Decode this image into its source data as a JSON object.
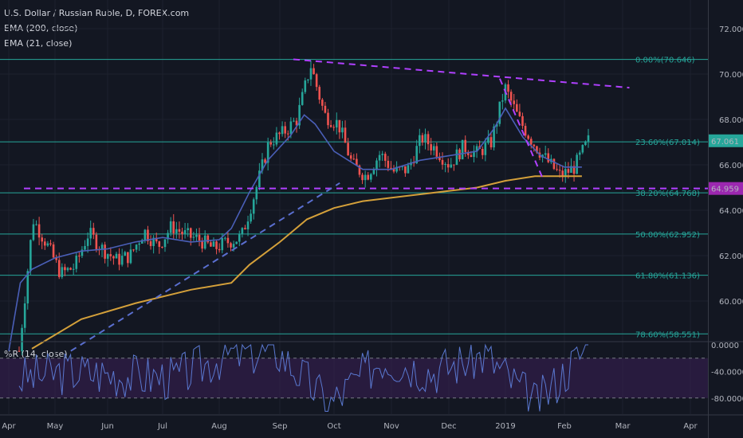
{
  "header": {
    "symbol_title": "U.S. Dollar / Russian Ruble, D, FOREX.com",
    "ema200_label": "EMA (200, close)",
    "ema21_label": "EMA (21, close)",
    "wr_label": "%R (14, close)"
  },
  "colors": {
    "background": "#131722",
    "grid": "#1e222d",
    "candle_up": "#26a69a",
    "candle_down": "#ef5350",
    "ema200": "#d4a03a",
    "ema21": "#4a5fb8",
    "fib": "#26a69a",
    "trend_magenta": "#b040ff",
    "trend_blue": "#5a6fd0",
    "wr_line": "#5a78d0",
    "wr_band": "#3b1f55",
    "last_price_bg": "#26a69a",
    "support_label_bg": "#9c27b0"
  },
  "chart_data": [
    {
      "type": "candlestick",
      "name": "price",
      "x_ticks": [
        "Apr",
        "May",
        "Jun",
        "Jul",
        "Aug",
        "Sep",
        "Oct",
        "Nov",
        "Dec",
        "2019",
        "Feb",
        "Mar",
        "Apr"
      ],
      "y_ticks": [
        "72.000",
        "70.000",
        "68.000",
        "66.000",
        "64.000",
        "62.000",
        "60.000"
      ],
      "ylim": [
        58,
        73.3
      ],
      "last_price": "67.061",
      "support_level_label": "64.959",
      "fib_levels": [
        {
          "label": "0.00%(70.646)",
          "value": 70.646
        },
        {
          "label": "23.60%(67.014)",
          "value": 67.014
        },
        {
          "label": "38.20%(64.768)",
          "value": 64.768
        },
        {
          "label": "50.00%(62.952)",
          "value": 62.952
        },
        {
          "label": "61.80%(61.136)",
          "value": 61.136
        },
        {
          "label": "78.60%(58.551)",
          "value": 58.551
        }
      ],
      "support_level": 64.959,
      "trend_lines": [
        {
          "style": "dashed",
          "color": "magenta",
          "from": [
            "Sep",
            70.65
          ],
          "to": [
            "Mar",
            69.4
          ]
        },
        {
          "style": "dashed",
          "color": "magenta",
          "from": [
            "Dec",
            69.8
          ],
          "to": [
            "Feb",
            65.3
          ]
        },
        {
          "style": "dashed",
          "color": "blue",
          "from": [
            "May",
            57.8
          ],
          "to": [
            "Oct",
            65.2
          ]
        }
      ],
      "close_path": [
        [
          "Apr",
          57.8
        ],
        [
          "Apr",
          63.6
        ],
        [
          "Apr",
          62.5
        ],
        [
          "Apr",
          61.2
        ],
        [
          "May",
          61.5
        ],
        [
          "May",
          63.0
        ],
        [
          "May",
          62.3
        ],
        [
          "May",
          61.8
        ],
        [
          "Jun",
          62.0
        ],
        [
          "Jun",
          63.1
        ],
        [
          "Jun",
          62.4
        ],
        [
          "Jun",
          63.3
        ],
        [
          "Jul",
          62.9
        ],
        [
          "Jul",
          62.7
        ],
        [
          "Jul",
          62.3
        ],
        [
          "Jul",
          62.6
        ],
        [
          "Aug",
          62.8
        ],
        [
          "Aug",
          64.8
        ],
        [
          "Aug",
          67.0
        ],
        [
          "Aug",
          67.4
        ],
        [
          "Sep",
          68.0
        ],
        [
          "Sep",
          70.4
        ],
        [
          "Sep",
          68.2
        ],
        [
          "Sep",
          67.8
        ],
        [
          "Oct",
          66.0
        ],
        [
          "Oct",
          65.5
        ],
        [
          "Oct",
          66.5
        ],
        [
          "Oct",
          65.7
        ],
        [
          "Nov",
          65.8
        ],
        [
          "Nov",
          67.2
        ],
        [
          "Nov",
          66.7
        ],
        [
          "Nov",
          66.0
        ],
        [
          "Dec",
          66.8
        ],
        [
          "Dec",
          66.5
        ],
        [
          "Dec",
          67.0
        ],
        [
          "Dec",
          69.4
        ],
        [
          "2019",
          68.0
        ],
        [
          "2019",
          67.0
        ],
        [
          "2019",
          66.2
        ],
        [
          "Feb",
          65.5
        ],
        [
          "Feb",
          65.9
        ],
        [
          "Feb",
          67.06
        ]
      ],
      "ema21_path": [
        [
          0.0,
          57.8
        ],
        [
          0.25,
          60.8
        ],
        [
          0.5,
          61.4
        ],
        [
          1.0,
          61.9
        ],
        [
          1.5,
          62.2
        ],
        [
          2.0,
          62.3
        ],
        [
          2.5,
          62.6
        ],
        [
          3.0,
          62.8
        ],
        [
          3.5,
          62.6
        ],
        [
          4.0,
          62.7
        ],
        [
          4.2,
          63.2
        ],
        [
          4.5,
          64.8
        ],
        [
          4.8,
          66.2
        ],
        [
          5.2,
          67.3
        ],
        [
          5.45,
          68.2
        ],
        [
          5.65,
          67.8
        ],
        [
          6.0,
          66.6
        ],
        [
          6.5,
          65.8
        ],
        [
          7.0,
          65.8
        ],
        [
          7.5,
          66.2
        ],
        [
          8.0,
          66.4
        ],
        [
          8.5,
          66.6
        ],
        [
          8.8,
          67.6
        ],
        [
          9.0,
          68.5
        ],
        [
          9.3,
          67.2
        ],
        [
          9.6,
          66.4
        ],
        [
          10.0,
          65.9
        ],
        [
          10.3,
          65.9
        ]
      ],
      "ema200_path": [
        [
          0.5,
          57.9
        ],
        [
          1.5,
          59.2
        ],
        [
          2.5,
          59.9
        ],
        [
          3.5,
          60.5
        ],
        [
          4.2,
          60.8
        ],
        [
          4.5,
          61.6
        ],
        [
          5.0,
          62.6
        ],
        [
          5.5,
          63.6
        ],
        [
          6.0,
          64.1
        ],
        [
          6.5,
          64.4
        ],
        [
          7.5,
          64.7
        ],
        [
          8.5,
          65.0
        ],
        [
          9.0,
          65.3
        ],
        [
          9.5,
          65.5
        ],
        [
          10.0,
          65.5
        ],
        [
          10.3,
          65.5
        ]
      ]
    },
    {
      "type": "line",
      "name": "%R (14, close)",
      "y_ticks": [
        "0.0000",
        "-40.0000",
        "-80.0000"
      ],
      "ylim": [
        -100,
        0
      ],
      "bands": [
        -20,
        -80
      ],
      "values_by_month": [
        [
          "Apr",
          -50
        ],
        [
          "May",
          -40
        ],
        [
          "Jun",
          -45
        ],
        [
          "Jul",
          -50
        ],
        [
          "Aug",
          -15
        ],
        [
          "Sep",
          -10
        ],
        [
          "Oct",
          -90
        ],
        [
          "Nov",
          -20
        ],
        [
          "Dec",
          -40
        ],
        [
          "2019",
          -15
        ],
        [
          "Feb",
          -90
        ],
        [
          "Feb",
          0
        ]
      ]
    }
  ]
}
